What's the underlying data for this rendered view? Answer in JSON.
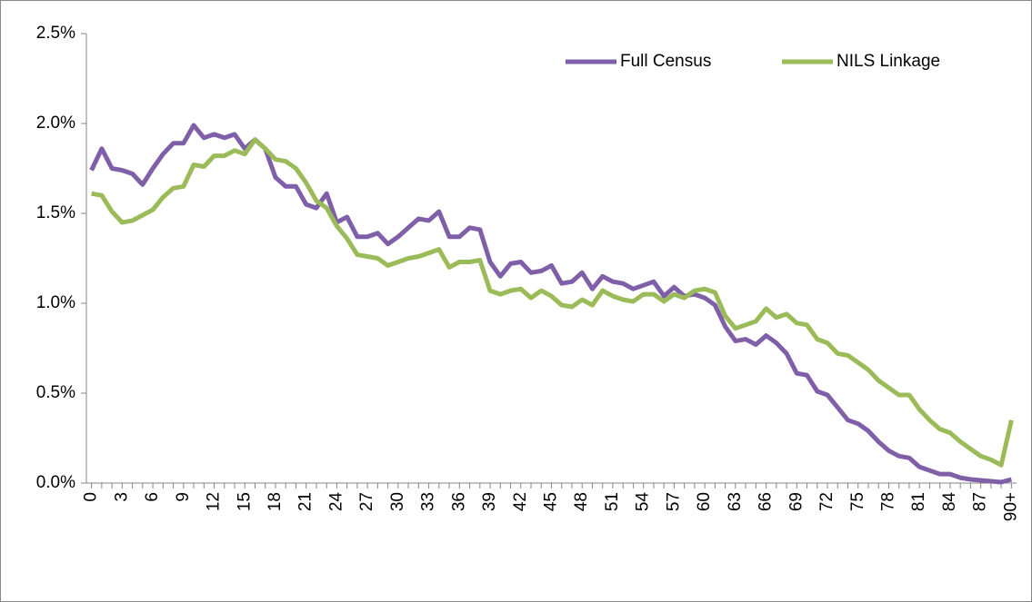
{
  "chart_data": {
    "type": "line",
    "categories": [
      "0",
      null,
      null,
      "3",
      null,
      null,
      "6",
      null,
      null,
      "9",
      null,
      null,
      "12",
      null,
      null,
      "15",
      null,
      null,
      "18",
      null,
      null,
      "21",
      null,
      null,
      "24",
      null,
      null,
      "27",
      null,
      null,
      "30",
      null,
      null,
      "33",
      null,
      null,
      "36",
      null,
      null,
      "39",
      null,
      null,
      "42",
      null,
      null,
      "45",
      null,
      null,
      "48",
      null,
      null,
      "51",
      null,
      null,
      "54",
      null,
      null,
      "57",
      null,
      null,
      "60",
      null,
      null,
      "63",
      null,
      null,
      "66",
      null,
      null,
      "69",
      null,
      null,
      "72",
      null,
      null,
      "75",
      null,
      null,
      "78",
      null,
      null,
      "81",
      null,
      null,
      "84",
      null,
      null,
      "87",
      null,
      null,
      "90+"
    ],
    "series": [
      {
        "name": "Full Census",
        "color": "#7f5fa8",
        "values": [
          1.74,
          1.86,
          1.75,
          1.74,
          1.72,
          1.66,
          1.75,
          1.83,
          1.89,
          1.89,
          1.99,
          1.92,
          1.94,
          1.92,
          1.94,
          1.86,
          1.91,
          1.86,
          1.7,
          1.65,
          1.65,
          1.55,
          1.53,
          1.61,
          1.45,
          1.48,
          1.37,
          1.37,
          1.39,
          1.33,
          1.37,
          1.42,
          1.47,
          1.46,
          1.51,
          1.37,
          1.37,
          1.42,
          1.41,
          1.23,
          1.15,
          1.22,
          1.23,
          1.17,
          1.18,
          1.21,
          1.11,
          1.12,
          1.17,
          1.08,
          1.15,
          1.12,
          1.11,
          1.08,
          1.1,
          1.12,
          1.04,
          1.09,
          1.04,
          1.05,
          1.03,
          0.99,
          0.87,
          0.79,
          0.8,
          0.77,
          0.82,
          0.78,
          0.72,
          0.61,
          0.6,
          0.51,
          0.49,
          0.42,
          0.35,
          0.33,
          0.29,
          0.23,
          0.18,
          0.15,
          0.14,
          0.09,
          0.07,
          0.05,
          0.05,
          0.03,
          0.02,
          0.015,
          0.01,
          0.005,
          0.02
        ]
      },
      {
        "name": "NILS Linkage",
        "color": "#9bbb59",
        "values": [
          1.61,
          1.6,
          1.51,
          1.45,
          1.46,
          1.49,
          1.52,
          1.59,
          1.64,
          1.65,
          1.77,
          1.76,
          1.82,
          1.82,
          1.85,
          1.83,
          1.91,
          1.86,
          1.8,
          1.79,
          1.75,
          1.67,
          1.57,
          1.53,
          1.43,
          1.36,
          1.27,
          1.26,
          1.25,
          1.21,
          1.23,
          1.25,
          1.26,
          1.28,
          1.3,
          1.2,
          1.23,
          1.23,
          1.24,
          1.07,
          1.05,
          1.07,
          1.08,
          1.03,
          1.07,
          1.04,
          0.99,
          0.98,
          1.02,
          0.99,
          1.07,
          1.04,
          1.02,
          1.01,
          1.05,
          1.05,
          1.01,
          1.05,
          1.03,
          1.07,
          1.08,
          1.06,
          0.93,
          0.86,
          0.88,
          0.9,
          0.97,
          0.92,
          0.94,
          0.89,
          0.88,
          0.8,
          0.78,
          0.72,
          0.71,
          0.67,
          0.63,
          0.57,
          0.53,
          0.49,
          0.49,
          0.41,
          0.35,
          0.3,
          0.28,
          0.23,
          0.19,
          0.15,
          0.13,
          0.1,
          0.35
        ]
      }
    ],
    "ylim": [
      0,
      2.5
    ],
    "yticks": [
      {
        "value": 0,
        "label": "0.0%"
      },
      {
        "value": 0.5,
        "label": "0.5%"
      },
      {
        "value": 1,
        "label": "1.0%"
      },
      {
        "value": 1.5,
        "label": "1.5%"
      },
      {
        "value": 2,
        "label": "2.0%"
      },
      {
        "value": 2.5,
        "label": "2.5%"
      }
    ],
    "grid": false,
    "legend": "upper right"
  }
}
